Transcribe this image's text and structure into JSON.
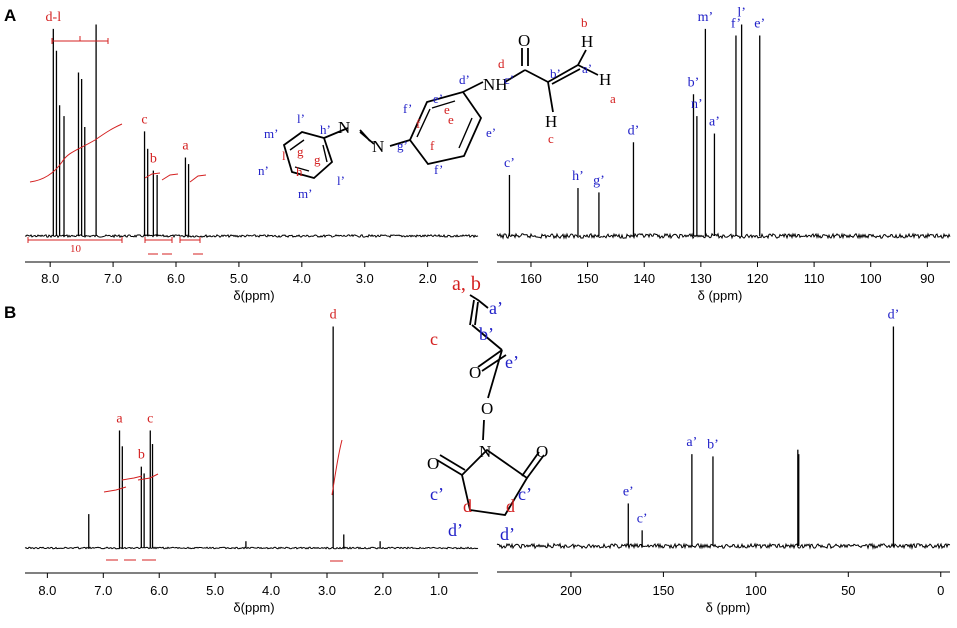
{
  "panels": [
    {
      "label": "A"
    },
    {
      "label": "B"
    }
  ],
  "colors": {
    "proton_label": "#d42020",
    "carbon_label": "#2020c8",
    "spectrum": "#000000",
    "integral": "#d42020"
  },
  "chart_data": [
    {
      "panel": "A",
      "type": "line",
      "nucleus": "1H",
      "xlabel": "δ(ppm)",
      "x_ticks": [
        "8.0",
        "7.0",
        "6.0",
        "5.0",
        "4.0",
        "3.0",
        "2.0"
      ],
      "xlim": [
        8.4,
        1.2
      ],
      "x_reversed": true,
      "peaks": [
        {
          "ppm": 7.95,
          "height": 0.95,
          "label": "d-l"
        },
        {
          "ppm": 7.9,
          "height": 0.85
        },
        {
          "ppm": 7.85,
          "height": 0.6
        },
        {
          "ppm": 7.78,
          "height": 0.55
        },
        {
          "ppm": 7.55,
          "height": 0.75
        },
        {
          "ppm": 7.5,
          "height": 0.72
        },
        {
          "ppm": 7.45,
          "height": 0.5
        },
        {
          "ppm": 7.27,
          "height": 0.97
        },
        {
          "ppm": 6.5,
          "height": 0.48,
          "label": "c"
        },
        {
          "ppm": 6.45,
          "height": 0.4
        },
        {
          "ppm": 6.36,
          "height": 0.3,
          "label": "b"
        },
        {
          "ppm": 6.3,
          "height": 0.28
        },
        {
          "ppm": 5.85,
          "height": 0.36,
          "label": "a"
        },
        {
          "ppm": 5.8,
          "height": 0.33
        }
      ],
      "integration_values": [
        "10",
        "1",
        "1",
        "1"
      ]
    },
    {
      "panel": "A",
      "type": "line",
      "nucleus": "13C",
      "xlabel": "δ (ppm)",
      "x_ticks": [
        "160",
        "150",
        "140",
        "130",
        "120",
        "110",
        "100",
        "90"
      ],
      "xlim": [
        166,
        86
      ],
      "x_reversed": true,
      "peaks": [
        {
          "ppm": 163.8,
          "height": 0.28,
          "label": "c’"
        },
        {
          "ppm": 151.7,
          "height": 0.22,
          "label": "h’"
        },
        {
          "ppm": 148.0,
          "height": 0.2,
          "label": "g’"
        },
        {
          "ppm": 141.9,
          "height": 0.43,
          "label": "d’"
        },
        {
          "ppm": 131.3,
          "height": 0.65,
          "label": "b’"
        },
        {
          "ppm": 130.7,
          "height": 0.55,
          "label": "n’"
        },
        {
          "ppm": 129.2,
          "height": 0.95,
          "label": "m’"
        },
        {
          "ppm": 127.6,
          "height": 0.47,
          "label": "a’"
        },
        {
          "ppm": 123.8,
          "height": 0.92,
          "label": "f’"
        },
        {
          "ppm": 122.8,
          "height": 0.97,
          "label": "l’"
        },
        {
          "ppm": 119.6,
          "height": 0.92,
          "label": "e’"
        }
      ]
    },
    {
      "panel": "B",
      "type": "line",
      "nucleus": "1H",
      "xlabel": "δ(ppm)",
      "x_ticks": [
        "8.0",
        "7.0",
        "6.0",
        "5.0",
        "4.0",
        "3.0",
        "2.0",
        "1.0"
      ],
      "xlim": [
        8.4,
        0.3
      ],
      "x_reversed": true,
      "peaks": [
        {
          "ppm": 7.26,
          "height": 0.15
        },
        {
          "ppm": 6.71,
          "height": 0.52,
          "label": "a"
        },
        {
          "ppm": 6.66,
          "height": 0.45
        },
        {
          "ppm": 6.32,
          "height": 0.36,
          "label": "b"
        },
        {
          "ppm": 6.27,
          "height": 0.33
        },
        {
          "ppm": 6.16,
          "height": 0.52,
          "label": "c"
        },
        {
          "ppm": 6.12,
          "height": 0.46
        },
        {
          "ppm": 4.45,
          "height": 0.03
        },
        {
          "ppm": 2.89,
          "height": 0.98,
          "label": "d"
        },
        {
          "ppm": 2.7,
          "height": 0.06
        },
        {
          "ppm": 2.05,
          "height": 0.03
        }
      ],
      "integration_values": [
        "1",
        "1",
        "1",
        "4"
      ]
    },
    {
      "panel": "B",
      "type": "line",
      "nucleus": "13C",
      "xlabel": "δ (ppm)",
      "x_ticks": [
        "200",
        "150",
        "100",
        "50",
        "0"
      ],
      "xlim": [
        240,
        -5
      ],
      "x_reversed": true,
      "peaks": [
        {
          "ppm": 169.0,
          "height": 0.19,
          "label": "e’"
        },
        {
          "ppm": 161.5,
          "height": 0.07,
          "label": "c’"
        },
        {
          "ppm": 134.6,
          "height": 0.41,
          "label": "a’"
        },
        {
          "ppm": 123.2,
          "height": 0.4,
          "label": "b’"
        },
        {
          "ppm": 77.3,
          "height": 0.43
        },
        {
          "ppm": 76.8,
          "height": 0.41
        },
        {
          "ppm": 25.6,
          "height": 0.98,
          "label": "d’"
        }
      ]
    }
  ],
  "structures": {
    "A": {
      "atoms": [
        "NH",
        "O",
        "H",
        "H",
        "H",
        "N",
        "N"
      ],
      "proton_labels": [
        "a",
        "b",
        "c",
        "d",
        "f",
        "e",
        "h",
        "l"
      ],
      "carbon_labels": [
        "a’",
        "b’",
        "c’",
        "d’",
        "e’",
        "f’",
        "g’",
        "h’",
        "l’",
        "m’",
        "n’",
        "e’",
        "f’",
        "l’",
        "m’"
      ],
      "ring_labels": [
        "g",
        "f",
        "e",
        "f",
        "e"
      ]
    },
    "B": {
      "proton_labels": [
        "a, b",
        "c",
        "d",
        "d"
      ],
      "carbon_labels": [
        "a’",
        "b’",
        "e’",
        "c’",
        "c’",
        "d’",
        "d’"
      ],
      "atoms": [
        "O",
        "O",
        "N",
        "O",
        "O"
      ]
    }
  }
}
